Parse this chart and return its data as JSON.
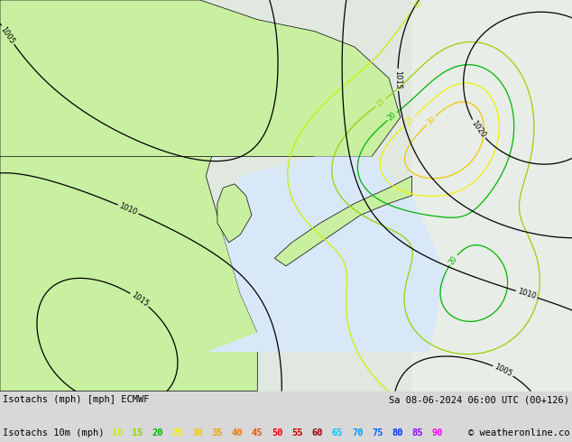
{
  "title_left": "Isotachs (mph) [mph] ECMWF",
  "title_right": "Sa 08-06-2024 06:00 UTC (00+126)",
  "legend_label": "Isotachs 10m (mph)",
  "legend_values": [
    10,
    15,
    20,
    25,
    30,
    35,
    40,
    45,
    50,
    55,
    60,
    65,
    70,
    75,
    80,
    85,
    90
  ],
  "legend_colors": [
    "#c8f000",
    "#96d200",
    "#00b400",
    "#f0f000",
    "#f0c800",
    "#f0a000",
    "#f07800",
    "#f05000",
    "#f00000",
    "#c80000",
    "#960000",
    "#00c8ff",
    "#0096ff",
    "#0064ff",
    "#0032ff",
    "#9600ff",
    "#ff00ff"
  ],
  "copyright": "© weatheronline.co.uk",
  "land_color": "#c8f0a0",
  "sea_color": "#e8e8e8",
  "bottom_bg": "#d8d8d8",
  "fig_width": 6.34,
  "fig_height": 4.9,
  "dpi": 100,
  "title_fontsize": 7.5,
  "legend_fontsize": 7.5
}
